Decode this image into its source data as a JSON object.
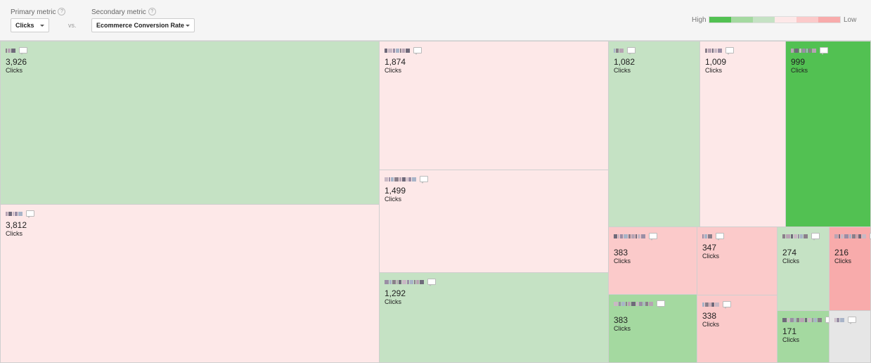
{
  "toolbar": {
    "primary_label": "Primary metric",
    "primary_value": "Clicks",
    "vs_label": "vs.",
    "secondary_label": "Secondary metric",
    "secondary_value": "Ecommerce Conversion Rate",
    "help_glyph": "?"
  },
  "legend": {
    "high": "High",
    "low": "Low",
    "colors": [
      "#52c152",
      "#a4d9a0",
      "#c5e2c4",
      "#fde8e8",
      "#fbcaca",
      "#f8abab"
    ]
  },
  "treemap": {
    "metric_label": "Clicks",
    "cells": [
      {
        "value": "3,926",
        "color": "#c5e2c4",
        "name_icon": "redacted-label"
      },
      {
        "value": "3,812",
        "color": "#fde8e8",
        "name_icon": "redacted-label"
      },
      {
        "value": "1,874",
        "color": "#fde8e8",
        "name_icon": "redacted-label"
      },
      {
        "value": "1,499",
        "color": "#fde8e8",
        "name_icon": "redacted-label"
      },
      {
        "value": "1,292",
        "color": "#c5e2c4",
        "name_icon": "redacted-label"
      },
      {
        "value": "1,082",
        "color": "#c5e2c4",
        "name_icon": "redacted-label"
      },
      {
        "value": "1,009",
        "color": "#fde8e8",
        "name_icon": "redacted-label"
      },
      {
        "value": "999",
        "color": "#52c152",
        "name_icon": "redacted-label"
      },
      {
        "value": "383",
        "color": "#fbcaca",
        "name_icon": "redacted-label"
      },
      {
        "value": "383",
        "color": "#a4d9a0",
        "name_icon": "redacted-label"
      },
      {
        "value": "347",
        "color": "#fbcaca",
        "name_icon": "redacted-label"
      },
      {
        "value": "338",
        "color": "#fbcaca",
        "name_icon": "redacted-label"
      },
      {
        "value": "274",
        "color": "#c5e2c4",
        "name_icon": "redacted-label"
      },
      {
        "value": "216",
        "color": "#f8abab",
        "name_icon": "redacted-label"
      },
      {
        "value": "171",
        "color": "#a4d9a0",
        "name_icon": "redacted-label"
      },
      {
        "value": "",
        "color": "#e6e6e6",
        "name_icon": "redacted-label"
      }
    ]
  }
}
